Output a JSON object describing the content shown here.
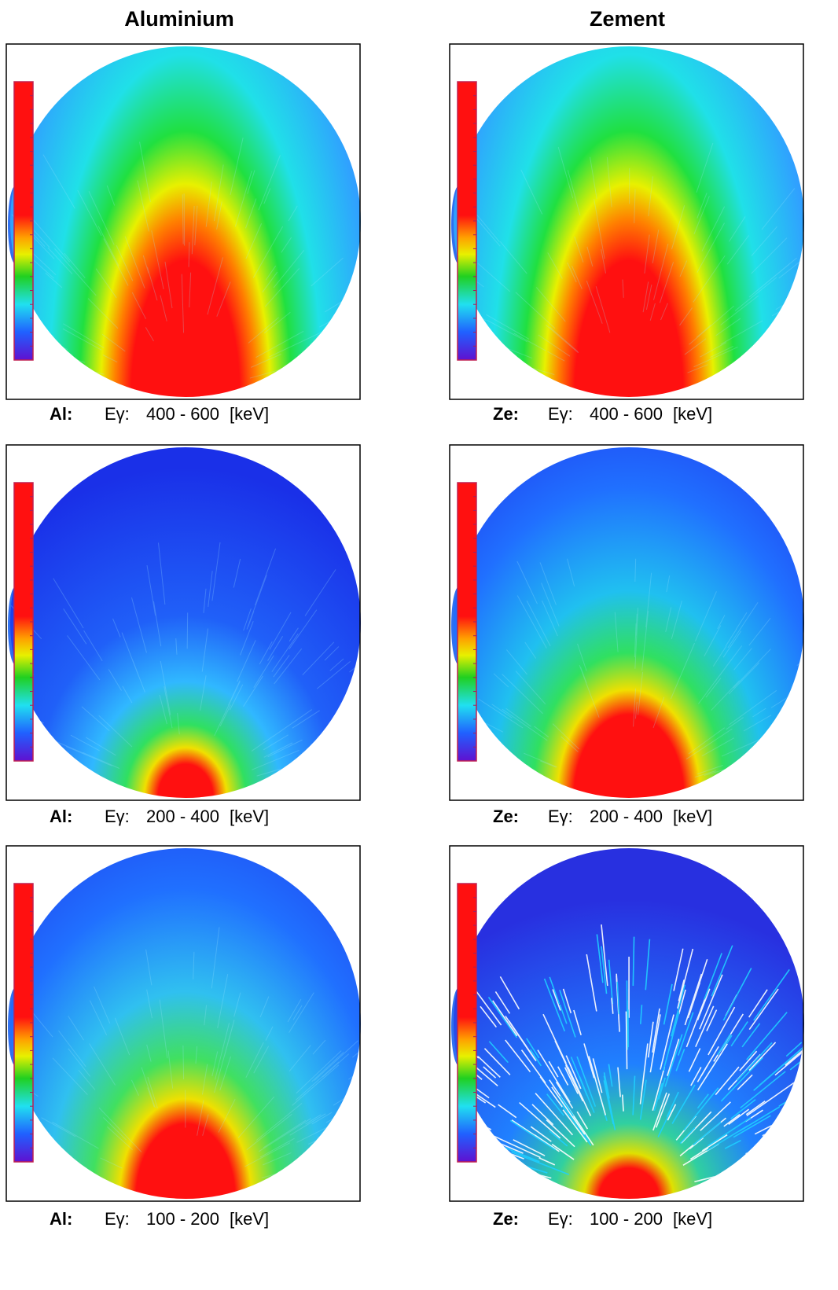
{
  "columns": [
    {
      "title": "Aluminium"
    },
    {
      "title": "Zement"
    }
  ],
  "panels": [
    {
      "material": "Al:",
      "quantity": "Eγ:",
      "range": "400 - 600",
      "unit": "[keV]"
    },
    {
      "material": "Ze:",
      "quantity": "Eγ:",
      "range": "400 - 600",
      "unit": "[keV]"
    },
    {
      "material": "Al:",
      "quantity": "Eγ:",
      "range": "200 - 400",
      "unit": "[keV]"
    },
    {
      "material": "Ze:",
      "quantity": "Eγ:",
      "range": "200 - 400",
      "unit": "[keV]"
    },
    {
      "material": "Al:",
      "quantity": "Eγ:",
      "range": "100 - 200",
      "unit": "[keV]"
    },
    {
      "material": "Ze:",
      "quantity": "Eγ:",
      "range": "100 - 200",
      "unit": "[keV]"
    }
  ]
}
